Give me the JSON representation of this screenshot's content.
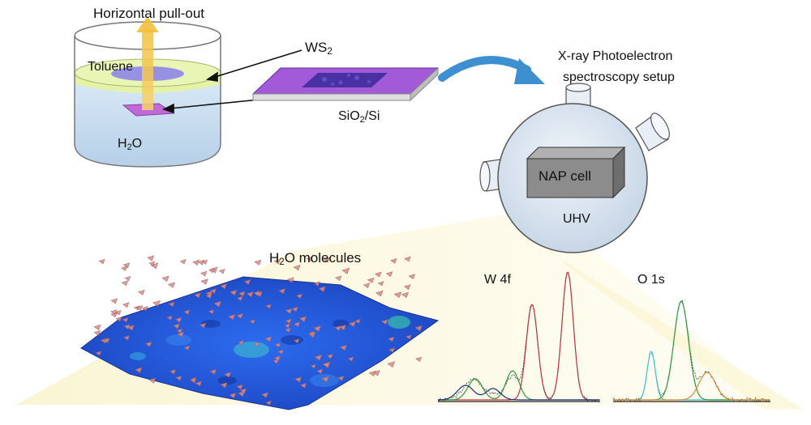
{
  "labels": {
    "pullout": "Horizontal pull-out",
    "toluene": "Toluene",
    "ws2_main": "WS",
    "ws2_sub": "2",
    "h2o_main": "H",
    "h2o_sub": "2",
    "h2o_tail": "O",
    "substrate_a": "SiO",
    "substrate_sub": "2",
    "substrate_b": "/Si",
    "xps_line1": "X-ray Photoelectron",
    "xps_line2": "spectroscopy setup",
    "nap_cell": "NAP cell",
    "uhv": "UHV",
    "molecules_main": "H",
    "molecules_sub": "2",
    "molecules_tail": "O molecules",
    "w4f": "W 4f",
    "o1s": "O 1s"
  },
  "colors": {
    "water": "#c9dff0",
    "toluene_band": "#dff0a0",
    "ws2_film": "#7a2fb3",
    "arrow_curve": "#3d8fd0",
    "pullout_arrow": "#f3c94d",
    "chamber": "#cfdbea",
    "nap_box": "#8c8c8c",
    "surface": "#1d4fd6",
    "molecules": "#d98c8c",
    "beam": "#fbf6cf",
    "peak_red": "#c03040",
    "peak_green": "#2a9a3a",
    "peak_navy": "#1e2a78",
    "peak_cyan": "#3cc0d8",
    "peak_orange": "#e08a30"
  }
}
